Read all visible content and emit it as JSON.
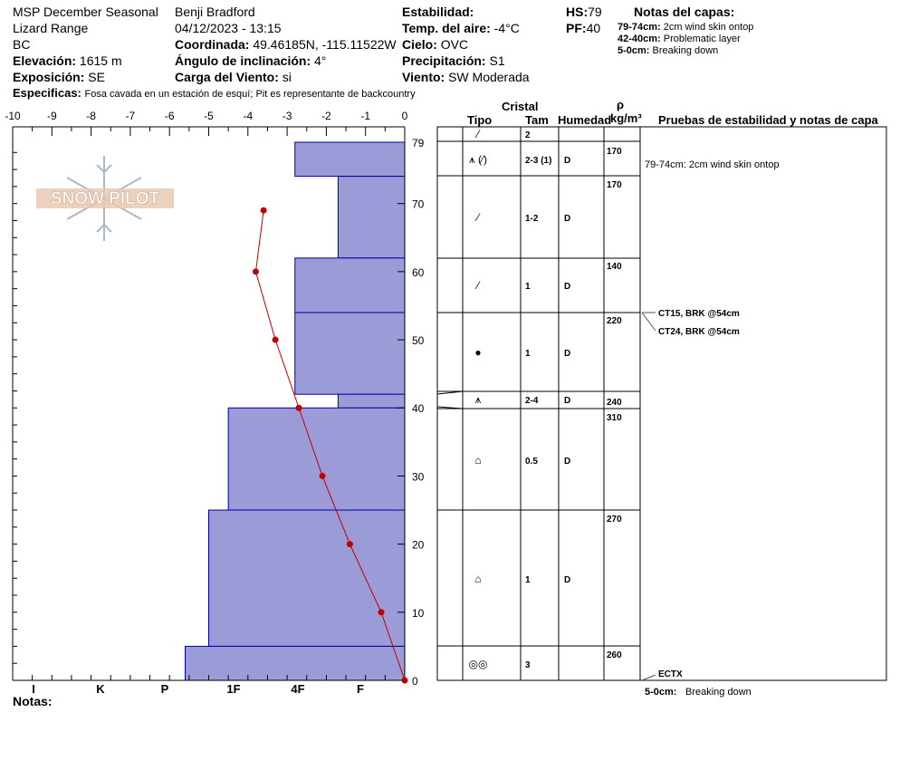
{
  "header": {
    "study": "MSP December Seasonal",
    "range": "Lizard Range",
    "state": "BC",
    "elev_label": "Elevación:",
    "elev_value": "1615 m",
    "aspect_label": "Exposición:",
    "aspect_value": "SE",
    "observer": "Benji Bradford",
    "datetime": "04/12/2023 - 13:15",
    "coord_label": "Coordinada:",
    "coord_value": "49.46185N, -115.11522W",
    "slope_label": "Ángulo de inclinación:",
    "slope_value": "4°",
    "windload_label": "Carga del Viento:",
    "windload_value": "si",
    "stability_label": "Estabilidad:",
    "airtemp_label": "Temp. del aire:",
    "airtemp_value": "-4°C",
    "sky_label": "Cielo:",
    "sky_value": "OVC",
    "precip_label": "Precipitación:",
    "precip_value": "S1",
    "wind_label": "Viento:",
    "wind_value": "SW Moderada",
    "hs_label": "HS:",
    "hs_value": "79",
    "pf_label": "PF:",
    "pf_value": "40",
    "specifics_label": "Especificas:",
    "specifics_value": "Fosa cavada en un estación de esquí; Pit es representante de backcountry",
    "notes_label": "Notas:"
  },
  "layer_notes": {
    "title": "Notas del capas:",
    "items": [
      {
        "range": "79-74cm:",
        "text": "2cm wind skin ontop"
      },
      {
        "range": "42-40cm:",
        "text": "Problematic layer"
      },
      {
        "range": "5-0cm:",
        "text": "Breaking down"
      }
    ]
  },
  "logo_text": "SNOW PILOT",
  "table_headers": {
    "crystal": "Cristal",
    "type": "Tipo",
    "size": "Tam",
    "moisture": "Humedad",
    "rho": "ρ",
    "density_unit": "kg/m³",
    "tests": "Pruebas de estabilidad y notas de capa"
  },
  "chart_data": {
    "type": "snow_profile",
    "x_axis_top": [
      "-10",
      "-9",
      "-8",
      "-7",
      "-6",
      "-5",
      "-4",
      "-3",
      "-2",
      "-1",
      "0"
    ],
    "x_axis_bottom": [
      "I",
      "K",
      "P",
      "1F",
      "4F",
      "F"
    ],
    "y_ticks": [
      "0",
      "10",
      "20",
      "30",
      "40",
      "50",
      "60",
      "70"
    ],
    "y_top_label": "79",
    "ylim": [
      0,
      79
    ],
    "temp_xlim": [
      -10,
      0
    ],
    "hardness_layers": [
      {
        "top": 79,
        "bottom": 74,
        "hardness_x": -2.8
      },
      {
        "top": 74,
        "bottom": 62,
        "hardness_x": -1.7
      },
      {
        "top": 62,
        "bottom": 54,
        "hardness_x": -2.8
      },
      {
        "top": 54,
        "bottom": 42,
        "hardness_x": -2.8
      },
      {
        "top": 42,
        "bottom": 40,
        "hardness_x": -1.7
      },
      {
        "top": 40,
        "bottom": 25,
        "hardness_x": -4.5
      },
      {
        "top": 25,
        "bottom": 5,
        "hardness_x": -5.0
      },
      {
        "top": 5,
        "bottom": 0,
        "hardness_x": -5.6
      }
    ],
    "temperature_profile": [
      {
        "depth": 69,
        "temp": -3.6
      },
      {
        "depth": 60,
        "temp": -3.8
      },
      {
        "depth": 50,
        "temp": -3.3
      },
      {
        "depth": 40,
        "temp": -2.7
      },
      {
        "depth": 30,
        "temp": -2.1
      },
      {
        "depth": 20,
        "temp": -1.4
      },
      {
        "depth": 10,
        "temp": -0.6
      },
      {
        "depth": 0,
        "temp": 0.0
      }
    ],
    "layers": [
      {
        "top": 79,
        "bottom": 79,
        "type": "⁄",
        "size": "2",
        "moisture": "",
        "density": ""
      },
      {
        "top": 79,
        "bottom": 74,
        "type": "⩚ (⁄)",
        "size": "2-3 (1)",
        "moisture": "D",
        "density": "170",
        "note": "79-74cm:  2cm wind skin ontop"
      },
      {
        "top": 74,
        "bottom": 62,
        "type": "⁄",
        "size": "1-2",
        "moisture": "D",
        "density": "170"
      },
      {
        "top": 62,
        "bottom": 54,
        "type": "⁄",
        "size": "1",
        "moisture": "D",
        "density": "140"
      },
      {
        "top": 54,
        "bottom": 42,
        "type": "●",
        "size": "1",
        "moisture": "D",
        "density": "220"
      },
      {
        "top": 42,
        "bottom": 40,
        "type": "⩚",
        "size": "2-4",
        "moisture": "D",
        "density": "240"
      },
      {
        "top": 40,
        "bottom": 25,
        "type": "⌂",
        "size": "0.5",
        "moisture": "D",
        "density": "310"
      },
      {
        "top": 25,
        "bottom": 5,
        "type": "⌂",
        "size": "1",
        "moisture": "D",
        "density": "270"
      },
      {
        "top": 5,
        "bottom": 0,
        "type": "◎◎",
        "size": "3",
        "moisture": "",
        "density": "260"
      }
    ],
    "stability_tests": [
      {
        "text": "CT15, BRK @54cm",
        "depth": 54
      },
      {
        "text": "CT24, BRK @54cm",
        "depth": 54
      },
      {
        "text": "ECTX",
        "depth": 0
      }
    ],
    "bottom_note": {
      "range": "5-0cm:",
      "text": "Breaking down"
    }
  }
}
